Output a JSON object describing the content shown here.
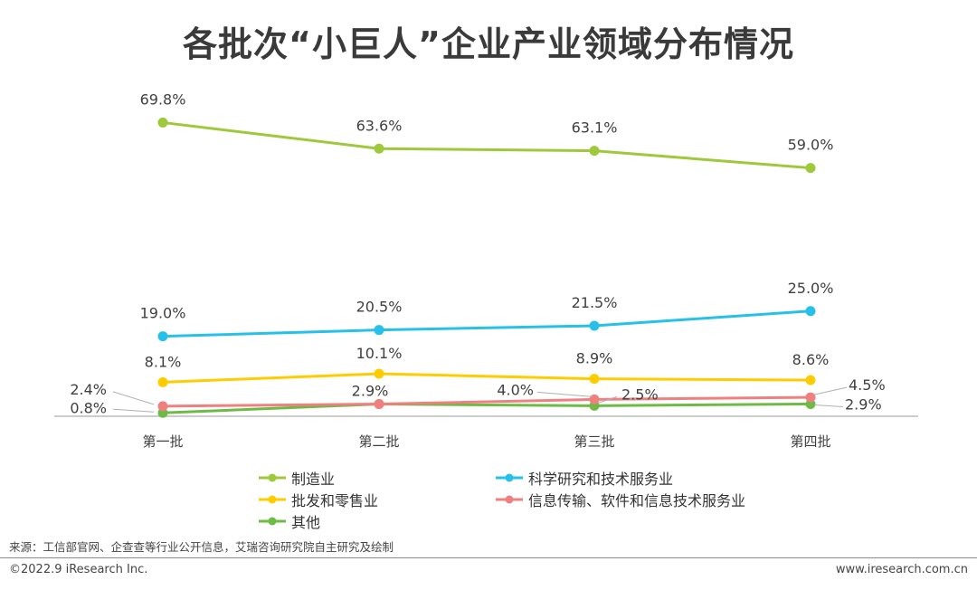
{
  "title": "各批次“小巨人”企业产业领域分布情况",
  "chart_data": {
    "type": "line",
    "categories": [
      "第一批",
      "第二批",
      "第三批",
      "第四批"
    ],
    "ylim": [
      0,
      80
    ],
    "series": [
      {
        "name": "制造业",
        "color": "#9dc93b",
        "values": [
          69.8,
          63.6,
          63.1,
          59.0
        ],
        "labels": [
          "69.8%",
          "63.6%",
          "63.1%",
          "59.0%"
        ]
      },
      {
        "name": "科学研究和技术服务业",
        "color": "#27c0ea",
        "values": [
          19.0,
          20.5,
          21.5,
          25.0
        ],
        "labels": [
          "19.0%",
          "20.5%",
          "21.5%",
          "25.0%"
        ]
      },
      {
        "name": "批发和零售业",
        "color": "#ffcc00",
        "values": [
          8.1,
          10.1,
          8.9,
          8.6
        ],
        "labels": [
          "8.1%",
          "10.1%",
          "8.9%",
          "8.6%"
        ]
      },
      {
        "name": "信息传输、软件和信息技术服务业",
        "color": "#f08080",
        "values": [
          2.4,
          2.9,
          4.0,
          4.5
        ],
        "labels": [
          "2.4%",
          "2.9%",
          "4.0%",
          "4.5%"
        ]
      },
      {
        "name": "其他",
        "color": "#6dbb45",
        "values": [
          0.8,
          2.9,
          2.5,
          2.9
        ],
        "labels": [
          "0.8%",
          "",
          "2.5%",
          "2.9%"
        ]
      }
    ]
  },
  "legend": [
    {
      "name": "制造业",
      "color": "#9dc93b"
    },
    {
      "name": "科学研究和技术服务业",
      "color": "#27c0ea"
    },
    {
      "name": "批发和零售业",
      "color": "#ffcc00"
    },
    {
      "name": "信息传输、软件和信息技术服务业",
      "color": "#f08080"
    },
    {
      "name": "其他",
      "color": "#6dbb45"
    }
  ],
  "source": "来源：工信部官网、企查查等行业公开信息，艾瑞咨询研究院自主研究及绘制",
  "copyright": "©2022.9 iResearch Inc.",
  "website": "www.iresearch.com.cn"
}
